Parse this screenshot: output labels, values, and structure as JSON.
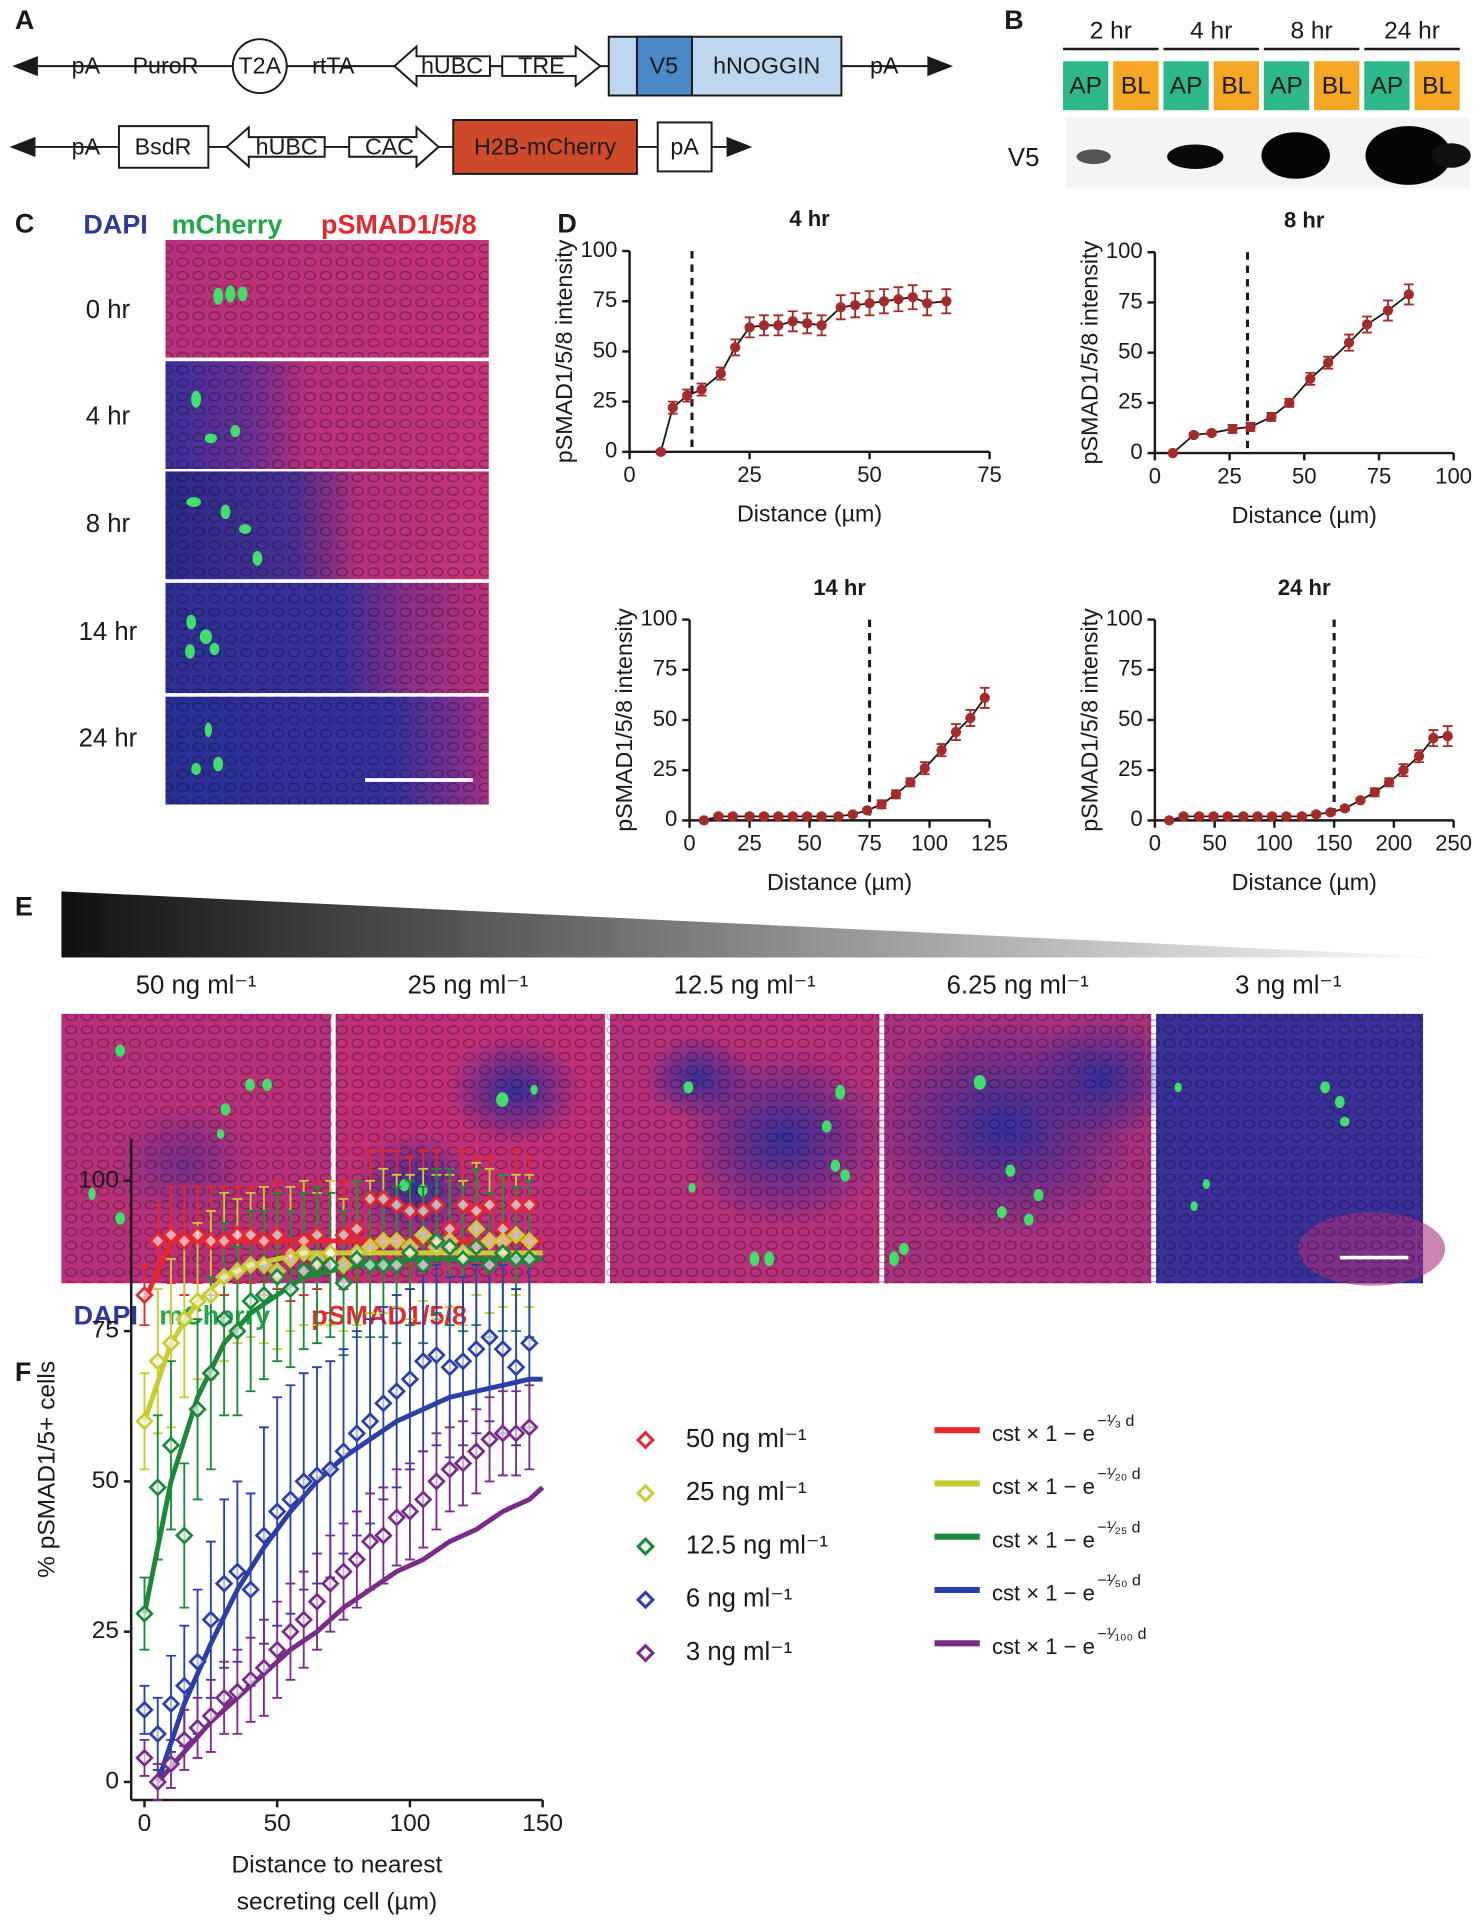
{
  "panel_labels": [
    "A",
    "B",
    "C",
    "D",
    "E",
    "F"
  ],
  "construct": {
    "row1": [
      "pA",
      "PuroR",
      "T2A",
      "rtTA",
      "hUBC",
      "TRE",
      "V5",
      "hNOGGIN",
      "pA"
    ],
    "row2": [
      "pA",
      "BsdR",
      "hUBC",
      "CAC",
      "H2B-mCherry",
      "pA"
    ]
  },
  "blot": {
    "times": [
      "2 hr",
      "4 hr",
      "8 hr",
      "24 hr"
    ],
    "lanes": [
      "AP",
      "BL"
    ],
    "row_label": "V5"
  },
  "stain_legend": {
    "dapi": "DAPI",
    "mcherry": "mCherry",
    "psmad": "pSMAD1/5/8"
  },
  "timecourse": [
    "0 hr",
    "4 hr",
    "8 hr",
    "14 hr",
    "24 hr"
  ],
  "dose_series": [
    "50 ng ml⁻¹",
    "25 ng ml⁻¹",
    "12.5 ng ml⁻¹",
    "6.25 ng ml⁻¹",
    "3 ng ml⁻¹"
  ],
  "chart_data": [
    {
      "type": "line",
      "title": "4 hr",
      "xlabel": "Distance (µm)",
      "ylabel": "pSMAD1/5/8  intensity",
      "xlim": [
        0,
        75
      ],
      "ylim": [
        0,
        100
      ],
      "xticks": [
        0,
        25,
        50,
        75
      ],
      "yticks": [
        0,
        25,
        50,
        75,
        100
      ],
      "vline": 13,
      "line_color": "#1a1a1a",
      "series": [
        {
          "color": "#a52a2a",
          "x": [
            6.5,
            9,
            12,
            15,
            19,
            22,
            25,
            28,
            31,
            34,
            37,
            40,
            44,
            47,
            50,
            53,
            56,
            59,
            62,
            66
          ],
          "values": [
            0,
            22,
            28,
            31,
            39,
            52,
            62,
            63,
            63,
            65,
            64,
            63,
            72,
            73,
            74,
            75,
            76,
            77,
            74,
            75
          ],
          "errors": [
            1,
            3,
            3,
            3,
            3,
            4,
            5,
            5,
            5,
            5,
            5,
            5,
            6,
            6,
            6,
            6,
            6,
            6,
            6,
            6
          ]
        }
      ]
    },
    {
      "type": "line",
      "title": "8 hr",
      "xlabel": "Distance (µm)",
      "ylabel": "pSMAD1/5/8  intensity",
      "xlim": [
        0,
        100
      ],
      "ylim": [
        0,
        100
      ],
      "xticks": [
        0,
        25,
        50,
        75,
        100
      ],
      "yticks": [
        0,
        25,
        50,
        75,
        100
      ],
      "vline": 31,
      "line_color": "#1a1a1a",
      "series": [
        {
          "color": "#a52a2a",
          "x": [
            6,
            13,
            19,
            26,
            32,
            39,
            45,
            52,
            58,
            65,
            71,
            78,
            85
          ],
          "values": [
            0,
            9,
            10,
            12,
            13,
            18,
            25,
            37,
            45,
            55,
            64,
            71,
            79
          ],
          "errors": [
            0,
            1,
            1,
            2,
            2,
            2,
            2,
            3,
            3,
            4,
            4,
            5,
            5
          ]
        }
      ]
    },
    {
      "type": "line",
      "title": "14 hr",
      "xlabel": "Distance (µm)",
      "ylabel": "pSMAD1/5/8  intensity",
      "xlim": [
        0,
        125
      ],
      "ylim": [
        0,
        100
      ],
      "xticks": [
        0,
        25,
        50,
        75,
        100,
        125
      ],
      "yticks": [
        0,
        25,
        50,
        75,
        100
      ],
      "vline": 75,
      "line_color": "#1a1a1a",
      "series": [
        {
          "color": "#a52a2a",
          "x": [
            6,
            12,
            18,
            25,
            31,
            37,
            43,
            49,
            55,
            62,
            68,
            74,
            80,
            86,
            92,
            98,
            105,
            111,
            117,
            123
          ],
          "values": [
            0,
            2,
            2,
            2,
            2,
            2,
            2,
            2,
            2,
            2,
            3,
            5,
            8,
            13,
            19,
            26,
            35,
            44,
            51,
            61
          ],
          "errors": [
            0,
            1,
            1,
            1,
            1,
            1,
            1,
            1,
            1,
            1,
            1,
            1,
            2,
            2,
            2,
            3,
            3,
            4,
            4,
            5
          ]
        }
      ]
    },
    {
      "type": "line",
      "title": "24 hr",
      "xlabel": "Distance (µm)",
      "ylabel": "pSMAD1/5/8  intensity",
      "xlim": [
        0,
        250
      ],
      "ylim": [
        0,
        100
      ],
      "xticks": [
        0,
        50,
        100,
        150,
        200,
        250
      ],
      "yticks": [
        0,
        25,
        50,
        75,
        100
      ],
      "vline": 150,
      "line_color": "#1a1a1a",
      "series": [
        {
          "color": "#a52a2a",
          "x": [
            12,
            24,
            37,
            49,
            61,
            74,
            86,
            98,
            110,
            123,
            135,
            147,
            159,
            172,
            184,
            196,
            208,
            221,
            233,
            245
          ],
          "values": [
            0,
            2,
            2,
            2,
            2,
            2,
            2,
            2,
            2,
            2,
            3,
            4,
            6,
            10,
            14,
            19,
            25,
            32,
            41,
            42
          ],
          "errors": [
            0,
            1,
            1,
            1,
            1,
            1,
            1,
            1,
            1,
            1,
            1,
            1,
            1,
            1,
            2,
            2,
            3,
            3,
            4,
            5
          ]
        }
      ]
    },
    {
      "type": "scatter",
      "xlabel": [
        "Distance to nearest",
        "secreting cell (µm)"
      ],
      "ylabel": "% pSMAD1/5+ cells",
      "xlim": [
        -5,
        150
      ],
      "ylim": [
        -3,
        107
      ],
      "xticks": [
        0,
        50,
        100,
        150
      ],
      "yticks": [
        0,
        25,
        50,
        75,
        100
      ],
      "x": [
        0,
        5,
        10,
        15,
        20,
        25,
        30,
        35,
        40,
        45,
        50,
        55,
        60,
        65,
        70,
        75,
        80,
        85,
        90,
        95,
        100,
        105,
        110,
        115,
        120,
        125,
        130,
        135,
        140,
        145
      ],
      "series": [
        {
          "name": "50 ng ml⁻¹",
          "color": "#e8262b",
          "values": [
            81,
            90,
            91,
            90,
            91,
            90,
            90,
            91,
            91,
            90,
            91,
            88,
            90,
            91,
            88,
            91,
            92,
            97,
            97,
            96,
            95,
            95,
            96,
            92,
            96,
            95,
            96,
            92,
            96,
            96
          ],
          "errors": [
            5,
            6,
            8,
            9,
            8,
            9,
            9,
            8,
            8,
            9,
            9,
            8,
            9,
            9,
            10,
            9,
            8,
            8,
            8,
            9,
            9,
            10,
            9,
            8,
            9,
            9,
            8,
            8,
            9,
            8
          ]
        },
        {
          "name": "25 ng ml⁻¹",
          "color": "#c8cc2e",
          "values": [
            60,
            70,
            73,
            77,
            80,
            81,
            84,
            85,
            86,
            86,
            85,
            87,
            88,
            87,
            88,
            86,
            88,
            89,
            90,
            90,
            89,
            91,
            89,
            90,
            88,
            92,
            90,
            90,
            91,
            90
          ],
          "errors": [
            8,
            12,
            14,
            13,
            13,
            14,
            14,
            12,
            12,
            13,
            13,
            12,
            12,
            11,
            12,
            11,
            12,
            11,
            12,
            11,
            12,
            11,
            12,
            11,
            12,
            11,
            12,
            11,
            10,
            11
          ]
        },
        {
          "name": "12.5 ng ml⁻¹",
          "color": "#1a8a3a",
          "values": [
            28,
            49,
            56,
            41,
            62,
            68,
            77,
            75,
            80,
            81,
            84,
            82,
            85,
            86,
            86,
            83,
            87,
            86,
            86,
            86,
            88,
            86,
            90,
            89,
            87,
            89,
            86,
            88,
            87,
            87
          ],
          "errors": [
            6,
            12,
            14,
            12,
            15,
            16,
            16,
            14,
            15,
            14,
            14,
            13,
            13,
            13,
            12,
            12,
            13,
            12,
            12,
            13,
            12,
            13,
            12,
            13,
            12,
            13,
            12,
            13,
            12,
            13
          ]
        },
        {
          "name": "6 ng ml⁻¹",
          "color": "#2b3fa8",
          "values": [
            12,
            8,
            13,
            16,
            20,
            27,
            33,
            35,
            32,
            41,
            45,
            47,
            50,
            51,
            52,
            55,
            58,
            60,
            63,
            65,
            67,
            70,
            71,
            69,
            70,
            72,
            74,
            72,
            69,
            73
          ],
          "errors": [
            4,
            6,
            8,
            10,
            12,
            13,
            14,
            15,
            16,
            18,
            19,
            19,
            18,
            18,
            18,
            17,
            17,
            17,
            16,
            16,
            15,
            15,
            15,
            15,
            14,
            14,
            14,
            14,
            13,
            14
          ]
        },
        {
          "name": "3 ng ml⁻¹",
          "color": "#7b2a8c",
          "values": [
            4,
            0,
            3,
            7,
            9,
            11,
            14,
            15,
            17,
            19,
            22,
            25,
            27,
            30,
            33,
            35,
            37,
            40,
            41,
            44,
            45,
            47,
            50,
            52,
            53,
            55,
            57,
            58,
            58,
            59
          ],
          "errors": [
            3,
            3,
            4,
            5,
            5,
            6,
            6,
            7,
            7,
            8,
            8,
            8,
            8,
            8,
            8,
            8,
            8,
            8,
            8,
            8,
            8,
            8,
            8,
            7,
            7,
            7,
            7,
            7,
            7,
            7
          ]
        }
      ],
      "fits": [
        {
          "name": "cst × 1 − e",
          "exponent": "−¹⁄₃ d",
          "color": "#e8262b",
          "x": [
            0,
            10,
            20,
            30,
            40,
            50,
            60,
            70,
            80,
            90,
            100,
            110,
            120,
            130,
            140,
            150
          ],
          "values": [
            80,
            90,
            90,
            90,
            90,
            90,
            90,
            90,
            90,
            90,
            90,
            90,
            90,
            90,
            90,
            90
          ]
        },
        {
          "name": "cst × 1 − e",
          "exponent": "−¹⁄₂₀ d",
          "color": "#c8cc2e",
          "x": [
            0,
            10,
            20,
            30,
            40,
            50,
            60,
            70,
            80,
            90,
            100,
            110,
            120,
            130,
            140,
            150
          ],
          "values": [
            60,
            73,
            80,
            84,
            86,
            87,
            88,
            88,
            88,
            88,
            88,
            88,
            88,
            88,
            88,
            88
          ]
        },
        {
          "name": "cst × 1 − e",
          "exponent": "−¹⁄₂₅ d",
          "color": "#1a8a3a",
          "x": [
            0,
            10,
            20,
            30,
            40,
            50,
            60,
            70,
            80,
            90,
            100,
            110,
            120,
            130,
            140,
            150
          ],
          "values": [
            28,
            50,
            64,
            73,
            78,
            81,
            84,
            85,
            86,
            86,
            87,
            87,
            87,
            87,
            87,
            87
          ]
        },
        {
          "name": "cst × 1 − e",
          "exponent": "−¹⁄₅₀ d",
          "color": "#2b3fa8",
          "x": [
            5,
            15,
            25,
            35,
            45,
            55,
            65,
            75,
            85,
            95,
            105,
            115,
            125,
            135,
            145,
            150
          ],
          "values": [
            0,
            13,
            23,
            32,
            39,
            45,
            50,
            54,
            57,
            60,
            62,
            64,
            65,
            66,
            67,
            67
          ]
        },
        {
          "name": "cst × 1 − e",
          "exponent": "−¹⁄₁₀₀ d",
          "color": "#7b2a8c",
          "x": [
            5,
            15,
            25,
            35,
            45,
            55,
            65,
            75,
            85,
            95,
            105,
            115,
            125,
            135,
            145,
            150
          ],
          "values": [
            0,
            5,
            10,
            14,
            18,
            22,
            25,
            29,
            32,
            35,
            37,
            40,
            42,
            45,
            47,
            49
          ]
        }
      ]
    }
  ]
}
